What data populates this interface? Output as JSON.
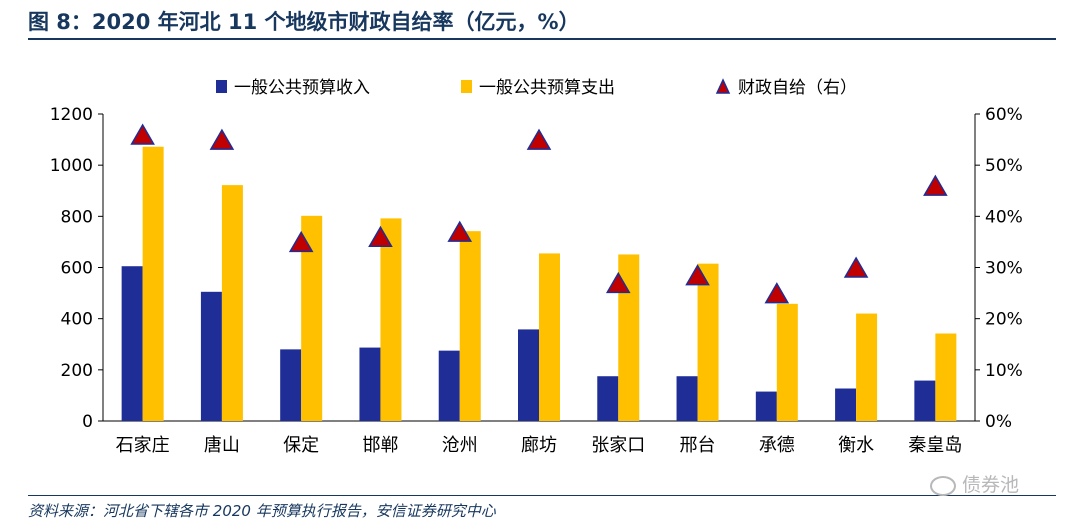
{
  "header": {
    "title": "图 8：2020 年河北 11 个地级市财政自给率（亿元，%）"
  },
  "footer": {
    "source": "资料来源：河北省下辖各市 2020 年预算执行报告，安信证券研究中心",
    "watermark": "债券池"
  },
  "colors": {
    "revenue": "#1f2d96",
    "expenditure": "#ffc000",
    "ratio_fill": "#c00000",
    "ratio_stroke": "#1f2d96",
    "title": "#17375e"
  },
  "chart_data": {
    "type": "bar",
    "categories": [
      "石家庄",
      "唐山",
      "保定",
      "邯郸",
      "沧州",
      "廊坊",
      "张家口",
      "邢台",
      "承德",
      "衡水",
      "秦皇岛"
    ],
    "series": [
      {
        "name": "一般公共预算收入",
        "axis": "left",
        "values": [
          605,
          505,
          280,
          287,
          275,
          358,
          175,
          175,
          115,
          127,
          158
        ]
      },
      {
        "name": "一般公共预算支出",
        "axis": "left",
        "values": [
          1072,
          922,
          802,
          792,
          742,
          655,
          651,
          615,
          458,
          420,
          342
        ]
      },
      {
        "name": "财政自给（右）",
        "axis": "right",
        "type": "scatter",
        "marker": "triangle",
        "values": [
          56,
          55,
          35,
          36,
          37,
          55,
          27,
          28.5,
          25,
          30,
          46
        ]
      }
    ],
    "ylim_left": [
      0,
      1200
    ],
    "yticks_left": [
      "0",
      "200",
      "400",
      "600",
      "800",
      "1000",
      "1200"
    ],
    "ylim_right": [
      0,
      60
    ],
    "yticks_right": [
      "0%",
      "10%",
      "20%",
      "30%",
      "40%",
      "50%",
      "60%"
    ],
    "legend": [
      "一般公共预算收入",
      "一般公共预算支出",
      "财政自给（右）"
    ],
    "legend_position": "top",
    "grid": false
  }
}
